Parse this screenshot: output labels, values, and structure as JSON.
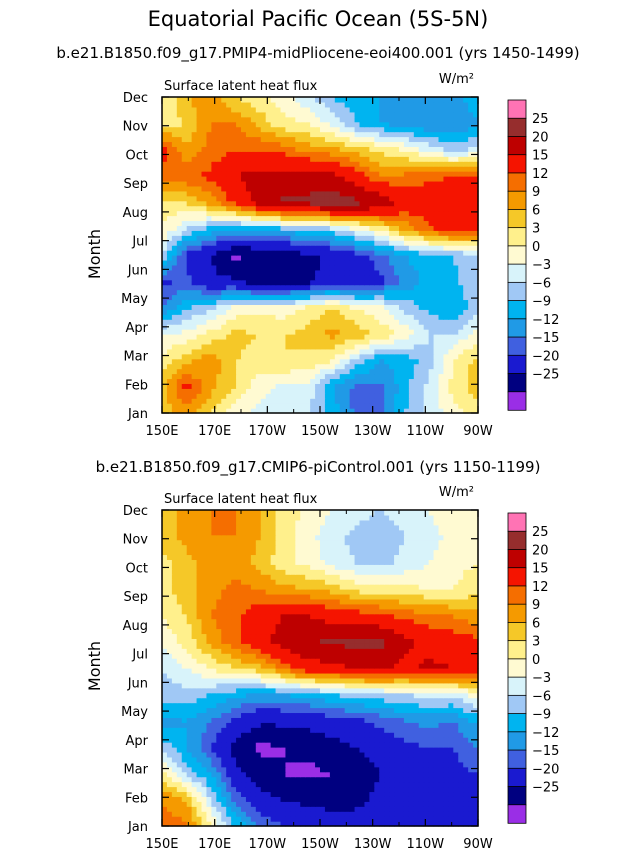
{
  "title": "Equatorial Pacific Ocean (5S-5N)",
  "colors": [
    "#9a2ee6",
    "#000080",
    "#1a1ad0",
    "#4060e0",
    "#209ae6",
    "#00b4f0",
    "#a0c8f5",
    "#d8f3fa",
    "#fffad2",
    "#fff08c",
    "#f5c828",
    "#f59a00",
    "#f56e00",
    "#f51400",
    "#be0000",
    "#962d2d",
    "#ff73b4"
  ],
  "chart_data": [
    {
      "type": "heatmap",
      "title": "b.e21.B1850.f09_g17.PMIP4-midPliocene-eoi400.001 (yrs 1450-1499)",
      "panel_label": "Surface latent heat flux",
      "units": "W/m²",
      "xlabel": "",
      "ylabel": "Month",
      "x_ticks": [
        "150E",
        "170E",
        "170W",
        "150W",
        "130W",
        "110W",
        "90W"
      ],
      "y_ticks": [
        "Jan",
        "Feb",
        "Mar",
        "Apr",
        "May",
        "Jun",
        "Jul",
        "Aug",
        "Sep",
        "Oct",
        "Nov",
        "Dec"
      ],
      "levels": [
        -25,
        -20,
        -15,
        -12,
        -9,
        -6,
        -3,
        0,
        3,
        6,
        9,
        12,
        15,
        20,
        25
      ],
      "level_labels": [
        "25",
        "20",
        "15",
        "12",
        "9",
        "6",
        "3",
        "0",
        "−3",
        "−6",
        "−9",
        "−12",
        "−15",
        "−20",
        "−25"
      ],
      "values": [
        [
          7,
          11,
          6,
          1,
          -1,
          -1,
          -3,
          -7,
          -13,
          -13,
          -6,
          -2,
          2,
          4
        ],
        [
          8,
          16,
          10,
          6,
          1,
          -1,
          -1,
          -9,
          -13,
          -13,
          -7,
          -2,
          4,
          8
        ],
        [
          4,
          8,
          11,
          6,
          5,
          6,
          5,
          3,
          -4,
          -9,
          -8,
          -4,
          3,
          7
        ],
        [
          0,
          1,
          4,
          7,
          6,
          6,
          7,
          10,
          8,
          5,
          2,
          -3,
          -3,
          2
        ],
        [
          -12,
          -6,
          -4,
          1,
          2,
          1,
          4,
          6,
          3,
          1,
          -4,
          -7,
          -9,
          -4
        ],
        [
          -16,
          -14,
          -19,
          -19,
          -23,
          -22,
          -21,
          -18,
          -20,
          -16,
          -11,
          -8,
          -7,
          -3
        ],
        [
          -3,
          -16,
          -20,
          -26,
          -24,
          -23,
          -21,
          -19,
          -16,
          -13,
          -9,
          -7,
          -6,
          -3
        ],
        [
          3,
          -3,
          -7,
          -9,
          -8,
          -7,
          -6,
          -4,
          0,
          4,
          10,
          14,
          18,
          16
        ],
        [
          5,
          6,
          10,
          16,
          22,
          26,
          26,
          28,
          26,
          24,
          18,
          18,
          19,
          19
        ],
        [
          13,
          14,
          16,
          20,
          22,
          22,
          23,
          22,
          17,
          12,
          13,
          14,
          15,
          16
        ],
        [
          17,
          10,
          13,
          15,
          15,
          14,
          11,
          10,
          8,
          5,
          3,
          -1,
          -4,
          -2
        ],
        [
          5,
          6,
          12,
          12,
          8,
          4,
          3,
          -1,
          -6,
          -9,
          -10,
          -12,
          -12,
          -10
        ],
        [
          3,
          9,
          11,
          6,
          4,
          1,
          -2,
          -6,
          -8,
          -9,
          -9,
          -11,
          -11,
          -6
        ]
      ]
    },
    {
      "type": "heatmap",
      "title": "b.e21.B1850.f09_g17.CMIP6-piControl.001 (yrs 1150-1199)",
      "panel_label": "Surface latent heat flux",
      "units": "W/m²",
      "xlabel": "",
      "ylabel": "Month",
      "x_ticks": [
        "150E",
        "170E",
        "170W",
        "150W",
        "130W",
        "110W",
        "90W"
      ],
      "y_ticks": [
        "Jan",
        "Feb",
        "Mar",
        "Apr",
        "May",
        "Jun",
        "Jul",
        "Aug",
        "Sep",
        "Oct",
        "Nov",
        "Dec"
      ],
      "levels": [
        -25,
        -20,
        -15,
        -12,
        -9,
        -6,
        -3,
        0,
        3,
        6,
        9,
        12,
        15,
        20,
        25
      ],
      "level_labels": [
        "25",
        "20",
        "15",
        "12",
        "9",
        "6",
        "3",
        "0",
        "−3",
        "−6",
        "−9",
        "−12",
        "−15",
        "−20",
        "−25"
      ],
      "values": [
        [
          13,
          13,
          4,
          -6,
          -12,
          -15,
          -16,
          -17,
          -18,
          -18,
          -15,
          -15,
          -16,
          -16
        ],
        [
          12,
          9,
          -3,
          -13,
          -18,
          -20,
          -21,
          -22,
          -21,
          -19,
          -17,
          -17,
          -16,
          -15
        ],
        [
          4,
          -4,
          -9,
          -18,
          -23,
          -25,
          -26,
          -25,
          -22,
          -20,
          -18,
          -17,
          -16,
          -15
        ],
        [
          -4,
          -9,
          -15,
          -22,
          -26,
          -25,
          -24,
          -22,
          -20,
          -18,
          -16,
          -15,
          -15,
          -12
        ],
        [
          -10,
          -9,
          -12,
          -16,
          -19,
          -19,
          -18,
          -17,
          -16,
          -14,
          -12,
          -11,
          -12,
          -8
        ],
        [
          -5,
          -4,
          -6,
          -8,
          -10,
          -9,
          -8,
          -6,
          -5,
          -4,
          -3,
          -2,
          -2,
          2
        ],
        [
          -3,
          0,
          3,
          6,
          8,
          13,
          18,
          18,
          21,
          21,
          19,
          21,
          20,
          17
        ],
        [
          1,
          4,
          10,
          14,
          18,
          22,
          24,
          26,
          26,
          26,
          21,
          18,
          17,
          16
        ],
        [
          3,
          6,
          12,
          14,
          18,
          20,
          20,
          18,
          17,
          16,
          14,
          13,
          12,
          10
        ],
        [
          5,
          8,
          11,
          13,
          12,
          10,
          9,
          8,
          5,
          4,
          4,
          3,
          3,
          5
        ],
        [
          5,
          8,
          10,
          11,
          8,
          4,
          2,
          -1,
          -3,
          -4,
          -2,
          0,
          2,
          3
        ],
        [
          7,
          10,
          12,
          12,
          9,
          5,
          1,
          -2,
          -4,
          -5,
          -3,
          -1,
          1,
          2
        ],
        [
          8,
          10,
          12,
          12,
          9,
          5,
          2,
          0,
          -2,
          -3,
          -2,
          0,
          2,
          3
        ]
      ]
    }
  ]
}
